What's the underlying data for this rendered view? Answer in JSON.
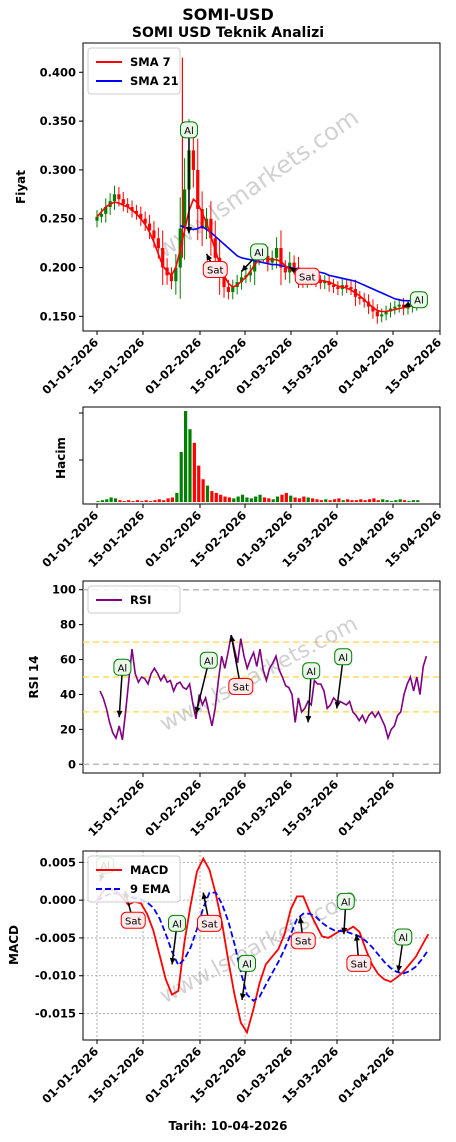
{
  "page": {
    "title": "SOMI-USD",
    "subtitle": "SOMI USD Teknik Analizi",
    "watermark": "www.lsmarkets.com",
    "footer": "Tarih: 10-04-2026"
  },
  "colors": {
    "up": "#008000",
    "down": "#ff0000",
    "sma7": "#ff0000",
    "sma21": "#0000ff",
    "rsi": "#800080",
    "macd": "#ff0000",
    "ema9": "#0000ff",
    "buy_box": "#008000",
    "sell_box": "#ff0000",
    "band": "#ffd966",
    "ref": "#bbbbbb"
  },
  "chart_data": [
    {
      "type": "line",
      "title": "SOMI USD Teknik Analizi",
      "ylabel": "Fiyat",
      "ylim": [
        0.135,
        0.43
      ],
      "yticks": [
        "0.150",
        "0.200",
        "0.250",
        "0.300",
        "0.350",
        "0.400"
      ],
      "xticks": [
        "01-01-2026",
        "15-01-2026",
        "01-02-2026",
        "15-02-2026",
        "01-03-2026",
        "15-03-2026",
        "01-04-2026",
        "15-04-2026"
      ],
      "legend": [
        "SMA 7",
        "SMA 21"
      ],
      "legend_position": "top-left",
      "close": [
        0.252,
        0.255,
        0.262,
        0.268,
        0.275,
        0.27,
        0.265,
        0.262,
        0.258,
        0.255,
        0.25,
        0.245,
        0.238,
        0.23,
        0.22,
        0.2,
        0.192,
        0.186,
        0.2,
        0.24,
        0.28,
        0.32,
        0.3,
        0.26,
        0.24,
        0.25,
        0.23,
        0.21,
        0.19,
        0.18,
        0.175,
        0.18,
        0.185,
        0.19,
        0.192,
        0.196,
        0.21,
        0.215,
        0.212,
        0.205,
        0.21,
        0.22,
        0.2,
        0.195,
        0.205,
        0.2,
        0.19,
        0.186,
        0.19,
        0.188,
        0.186,
        0.184,
        0.186,
        0.182,
        0.18,
        0.178,
        0.182,
        0.18,
        0.178,
        0.17,
        0.168,
        0.165,
        0.16,
        0.155,
        0.15,
        0.152,
        0.155,
        0.158,
        0.16,
        0.162,
        0.158,
        0.16,
        0.162,
        0.165
      ],
      "sma7": [
        0.252,
        0.257,
        0.262,
        0.265,
        0.267,
        0.266,
        0.264,
        0.262,
        0.259,
        0.255,
        0.25,
        0.244,
        0.236,
        0.226,
        0.214,
        0.202,
        0.196,
        0.192,
        0.2,
        0.218,
        0.238,
        0.258,
        0.27,
        0.266,
        0.256,
        0.246,
        0.232,
        0.218,
        0.204,
        0.192,
        0.184,
        0.18,
        0.182,
        0.186,
        0.19,
        0.196,
        0.203,
        0.208,
        0.21,
        0.209,
        0.208,
        0.208,
        0.206,
        0.202,
        0.198,
        0.196,
        0.194,
        0.192,
        0.19,
        0.189,
        0.188,
        0.187,
        0.186,
        0.185,
        0.183,
        0.181,
        0.18,
        0.179,
        0.177,
        0.174,
        0.171,
        0.167,
        0.163,
        0.159,
        0.156,
        0.155,
        0.155,
        0.156,
        0.157,
        0.158,
        0.159,
        0.16,
        0.161,
        0.162
      ],
      "sma21": [
        null,
        null,
        null,
        null,
        null,
        null,
        null,
        null,
        null,
        null,
        null,
        null,
        null,
        null,
        null,
        null,
        null,
        null,
        null,
        0.243,
        0.241,
        0.24,
        0.239,
        0.24,
        0.242,
        0.239,
        0.236,
        0.232,
        0.228,
        0.224,
        0.22,
        0.216,
        0.212,
        0.21,
        0.209,
        0.208,
        0.207,
        0.206,
        0.205,
        0.204,
        0.203,
        0.203,
        0.202,
        0.201,
        0.2,
        0.199,
        0.199,
        0.198,
        0.198,
        0.197,
        0.196,
        0.195,
        0.194,
        0.192,
        0.191,
        0.19,
        0.189,
        0.188,
        0.187,
        0.186,
        0.184,
        0.182,
        0.18,
        0.178,
        0.176,
        0.174,
        0.172,
        0.17,
        0.168,
        0.167,
        0.166,
        0.166,
        0.166,
        0.166
      ],
      "signals": [
        {
          "label": "Al",
          "kind": "buy",
          "day": 21,
          "price": 0.34
        },
        {
          "label": "Al",
          "kind": "buy",
          "day": 37,
          "price": 0.215
        },
        {
          "label": "Sat",
          "kind": "sell",
          "day": 27,
          "price": 0.197
        },
        {
          "label": "Sat",
          "kind": "sell",
          "day": 48,
          "price": 0.19
        },
        {
          "label": "Al",
          "kind": "buy",
          "day": 73,
          "price": 0.166
        }
      ]
    },
    {
      "type": "bar",
      "ylabel": "Hacim",
      "xticks": [
        "01-01-2026",
        "15-01-2026",
        "01-02-2026",
        "15-02-2026",
        "01-03-2026",
        "15-03-2026",
        "01-04-2026",
        "15-04-2026"
      ],
      "volume": [
        0.01,
        0.02,
        0.03,
        0.05,
        0.04,
        0.02,
        0.01,
        0.02,
        0.01,
        0.02,
        0.01,
        0.02,
        0.01,
        0.02,
        0.03,
        0.02,
        0.04,
        0.05,
        0.1,
        0.55,
        1.0,
        0.8,
        0.65,
        0.4,
        0.25,
        0.18,
        0.12,
        0.1,
        0.08,
        0.06,
        0.05,
        0.04,
        0.06,
        0.08,
        0.05,
        0.04,
        0.06,
        0.08,
        0.05,
        0.04,
        0.03,
        0.06,
        0.08,
        0.1,
        0.07,
        0.05,
        0.04,
        0.06,
        0.05,
        0.04,
        0.03,
        0.02,
        0.03,
        0.02,
        0.03,
        0.04,
        0.02,
        0.03,
        0.02,
        0.02,
        0.03,
        0.02,
        0.03,
        0.04,
        0.02,
        0.03,
        0.02,
        0.01,
        0.02,
        0.03,
        0.02,
        0.01,
        0.02,
        0.02
      ]
    },
    {
      "type": "line",
      "ylabel": "RSI 14",
      "ylim": [
        -5,
        105
      ],
      "yticks": [
        "0",
        "20",
        "40",
        "60",
        "80",
        "100"
      ],
      "xticks": [
        "15-01-2026",
        "01-02-2026",
        "15-02-2026",
        "01-03-2026",
        "15-03-2026",
        "01-04-2026"
      ],
      "legend": [
        "RSI"
      ],
      "legend_position": "top-left",
      "reference_lines": [
        0,
        30,
        50,
        70,
        100
      ],
      "rsi": [
        42,
        38,
        32,
        24,
        18,
        15,
        22,
        14,
        30,
        48,
        66,
        52,
        47,
        50,
        49,
        46,
        52,
        55,
        52,
        48,
        51,
        47,
        48,
        42,
        46,
        47,
        44,
        43,
        46,
        35,
        26,
        40,
        34,
        38,
        30,
        22,
        32,
        48,
        62,
        55,
        64,
        74,
        66,
        58,
        72,
        62,
        55,
        60,
        64,
        56,
        66,
        54,
        48,
        55,
        58,
        62,
        54,
        50,
        45,
        44,
        40,
        24,
        38,
        30,
        32,
        36,
        34,
        48,
        46,
        46,
        42,
        32,
        34,
        38,
        36,
        36,
        35,
        34,
        36,
        30,
        28,
        25,
        28,
        24,
        28,
        30,
        27,
        30,
        26,
        22,
        15,
        20,
        22,
        28,
        30,
        40,
        46,
        50,
        42,
        50,
        40,
        56,
        62
      ],
      "signals": [
        {
          "label": "Al",
          "kind": "buy",
          "day": 7,
          "value": 55
        },
        {
          "label": "Al",
          "kind": "buy",
          "day": 31,
          "value": 59
        },
        {
          "label": "Sat",
          "kind": "sell",
          "day": 41,
          "value": 44
        },
        {
          "label": "Al",
          "kind": "buy",
          "day": 63,
          "value": 53
        },
        {
          "label": "Al",
          "kind": "buy",
          "day": 71,
          "value": 61
        }
      ]
    },
    {
      "type": "line",
      "ylabel": "MACD",
      "ylim": [
        -0.0185,
        0.0065
      ],
      "yticks": [
        "-0.015",
        "-0.010",
        "-0.005",
        "0.000",
        "0.005"
      ],
      "xticks": [
        "01-01-2026",
        "15-01-2026",
        "01-02-2026",
        "15-02-2026",
        "01-03-2026",
        "15-03-2026",
        "01-04-2026"
      ],
      "legend": [
        "MACD",
        "9 EMA"
      ],
      "legend_position": "top-left",
      "grid": true,
      "macd": [
        0.0,
        0.0012,
        0.0016,
        0.0012,
        0.0004,
        -0.0006,
        -0.0002,
        -0.0004,
        -0.0018,
        -0.004,
        -0.0072,
        -0.0105,
        -0.0125,
        -0.012,
        -0.0055,
        -0.0005,
        0.0038,
        0.0055,
        0.004,
        0.0008,
        -0.003,
        -0.008,
        -0.0125,
        -0.0162,
        -0.0175,
        -0.0145,
        -0.011,
        -0.0085,
        -0.0075,
        -0.0065,
        -0.0045,
        -0.0012,
        0.0005,
        0.0005,
        -0.0015,
        -0.0032,
        -0.0048,
        -0.005,
        -0.0045,
        -0.004,
        -0.004,
        -0.0035,
        -0.0042,
        -0.0065,
        -0.0085,
        -0.0098,
        -0.0105,
        -0.0108,
        -0.0102,
        -0.0095,
        -0.0085,
        -0.0075,
        -0.006,
        -0.0045
      ],
      "ema9": [
        0.0,
        0.0004,
        0.0008,
        0.0009,
        0.0008,
        0.0005,
        0.0003,
        0.0001,
        -0.0003,
        -0.001,
        -0.0024,
        -0.0045,
        -0.0068,
        -0.0086,
        -0.0078,
        -0.0062,
        -0.0038,
        -0.001,
        0.001,
        0.001,
        -0.0005,
        -0.0028,
        -0.0058,
        -0.0095,
        -0.0125,
        -0.0133,
        -0.0128,
        -0.0112,
        -0.0097,
        -0.0082,
        -0.0065,
        -0.0045,
        -0.0025,
        -0.0018,
        -0.0018,
        -0.0022,
        -0.003,
        -0.0036,
        -0.004,
        -0.0041,
        -0.0042,
        -0.0045,
        -0.0048,
        -0.0054,
        -0.0062,
        -0.0072,
        -0.0082,
        -0.009,
        -0.0095,
        -0.0097,
        -0.0094,
        -0.0088,
        -0.0078,
        -0.0066
      ],
      "signals": [
        {
          "label": "Al",
          "kind": "buy",
          "day": 1,
          "value": 0.0045
        },
        {
          "label": "Sat",
          "kind": "sell",
          "day": 8,
          "value": -0.0028
        },
        {
          "label": "Al",
          "kind": "buy",
          "day": 18,
          "value": -0.0032
        },
        {
          "label": "Sat",
          "kind": "sell",
          "day": 25,
          "value": -0.0032
        },
        {
          "label": "Al",
          "kind": "buy",
          "day": 32,
          "value": -0.0085
        },
        {
          "label": "Sat",
          "kind": "sell",
          "day": 45,
          "value": -0.0055
        },
        {
          "label": "Al",
          "kind": "buy",
          "day": 54,
          "value": -0.0003
        },
        {
          "label": "Sat",
          "kind": "sell",
          "day": 57,
          "value": -0.0085
        },
        {
          "label": "Al",
          "kind": "buy",
          "day": 66,
          "value": -0.005
        }
      ]
    }
  ]
}
